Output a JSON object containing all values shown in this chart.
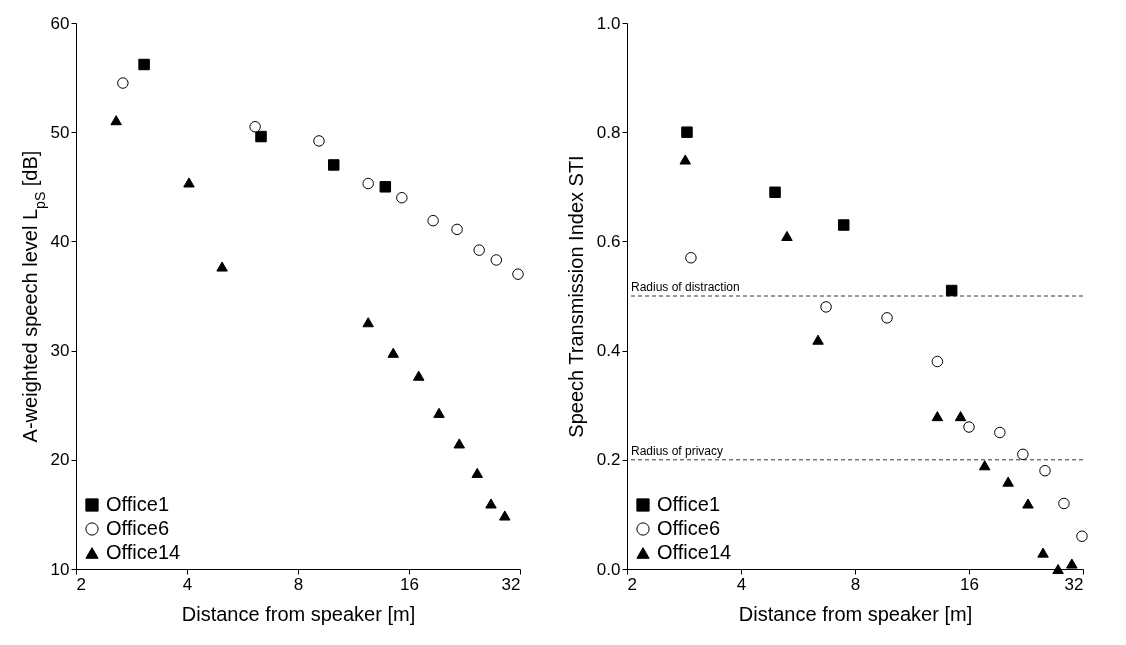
{
  "chart_data": [
    {
      "type": "scatter",
      "xlabel": "Distance from speaker [m]",
      "ylabel": "A-weighted speech level L$_{pS}$ [dB]",
      "log": "x",
      "xlim": [
        2,
        32
      ],
      "xticks": [
        2,
        4,
        8,
        16,
        32
      ],
      "ylim": [
        10,
        60
      ],
      "yticks": [
        10,
        20,
        30,
        40,
        50,
        60
      ],
      "legend": "bottom left",
      "series": [
        {
          "name": "Office1",
          "color": "#000000",
          "marker": "square",
          "x": [
            3.06,
            6.35,
            10.0,
            13.8
          ],
          "values": [
            56.2,
            49.6,
            47.0,
            45.0
          ]
        },
        {
          "name": "Office6",
          "color": "#000000",
          "marker": "circle",
          "x": [
            2.68,
            6.12,
            9.12,
            12.4,
            15.3,
            18.6,
            21.6,
            24.8,
            27.6,
            31.6
          ],
          "values": [
            54.5,
            50.5,
            49.2,
            45.3,
            44.0,
            41.9,
            41.1,
            39.2,
            38.3,
            37.0
          ]
        },
        {
          "name": "Office14",
          "color": "#000000",
          "marker": "triangle",
          "x": [
            2.57,
            4.05,
            4.98,
            12.4,
            14.5,
            17.0,
            19.3,
            21.9,
            24.5,
            26.7,
            29.1
          ],
          "values": [
            51.1,
            45.4,
            37.7,
            32.6,
            29.8,
            27.7,
            24.3,
            21.5,
            18.8,
            16.0,
            14.9
          ]
        }
      ]
    },
    {
      "type": "scatter",
      "xlabel": "Distance from speaker [m]",
      "ylabel": "Speech Transmission Index STI",
      "log": "x",
      "xlim": [
        2,
        32
      ],
      "xticks": [
        2,
        4,
        8,
        16,
        32
      ],
      "ylim": [
        0,
        1
      ],
      "yticks": [
        {
          "value": 0,
          "label": "0.0"
        },
        0.2,
        0.4,
        0.6,
        0.8,
        {
          "value": 1,
          "label": "1.0"
        }
      ],
      "legend": "bottom left",
      "ref_lines": [
        {
          "axis": "y",
          "value": 0.5,
          "label": "Radius of distraction",
          "line_style": "dashed"
        },
        {
          "axis": "y",
          "value": 0.2,
          "label": "Radius of privacy",
          "line_style": "dashed"
        }
      ],
      "series": [
        {
          "name": "Office1",
          "color": "#000000",
          "marker": "square",
          "x": [
            2.88,
            4.92,
            7.47,
            14.4
          ],
          "values": [
            0.8,
            0.69,
            0.63,
            0.51
          ]
        },
        {
          "name": "Office6",
          "color": "#000000",
          "marker": "circle",
          "x": [
            2.95,
            6.71,
            9.72,
            13.2,
            16.0,
            19.3,
            22.2,
            25.4,
            28.5,
            31.8
          ],
          "values": [
            0.57,
            0.48,
            0.46,
            0.38,
            0.26,
            0.25,
            0.21,
            0.18,
            0.12,
            0.06
          ]
        },
        {
          "name": "Office14",
          "color": "#000000",
          "marker": "triangle",
          "x": [
            2.85,
            5.29,
            6.39,
            13.2,
            15.2,
            17.6,
            20.3,
            22.9,
            25.1,
            27.5,
            29.9
          ],
          "values": [
            0.75,
            0.61,
            0.42,
            0.28,
            0.28,
            0.19,
            0.16,
            0.12,
            0.03,
            0.0,
            0.01
          ]
        }
      ]
    }
  ]
}
